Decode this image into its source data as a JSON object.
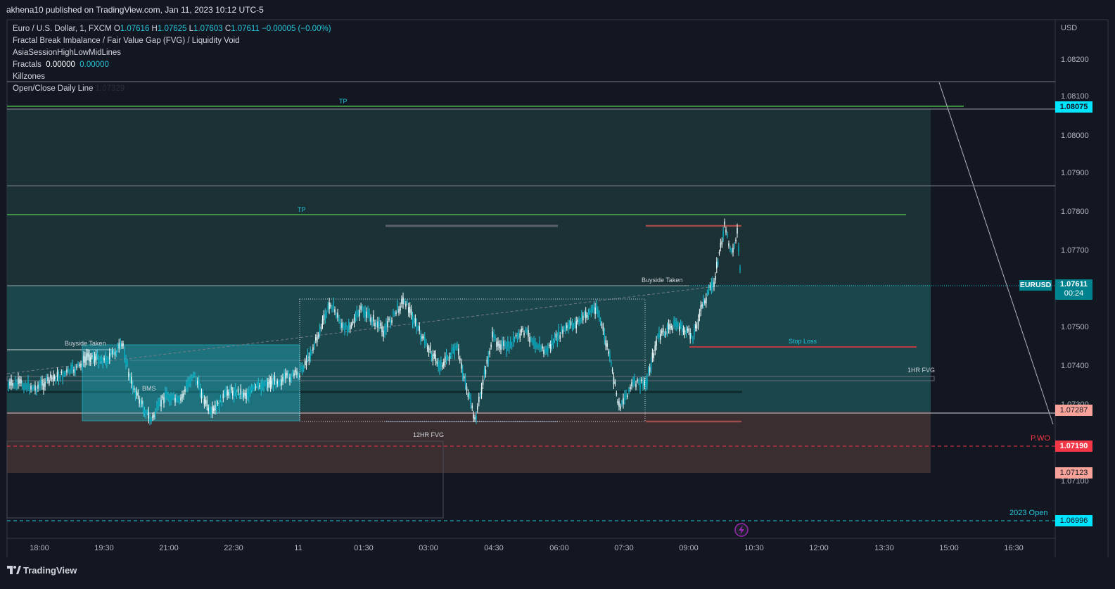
{
  "header": {
    "published": "akhena10 published on TradingView.com, Jan 11, 2023 10:12 UTC-5"
  },
  "legend": {
    "symbol_line": {
      "name": "Euro / U.S. Dollar, 1, FXCM",
      "o_label": "O",
      "o": "1.07616",
      "h_label": "H",
      "h": "1.07625",
      "l_label": "L",
      "l": "1.07603",
      "c_label": "C",
      "c": "1.07611",
      "change": "−0.00005 (−0.00%)"
    },
    "indicator_1": "Fractal Break Imbalance / Fair Value Gap (FVG) / Liquidity Void",
    "indicator_2": "AsiaSessionHighLowMidLines",
    "indicator_3": {
      "name": "Fractals",
      "v1": "0.00000",
      "v2": "0.00000"
    },
    "indicator_4": "Killzones",
    "indicator_5": {
      "name": "Open/Close Daily Line",
      "value": "1.07329"
    }
  },
  "price_axis": {
    "currency": "USD",
    "ticks": [
      "1.08200",
      "1.08100",
      "1.08000",
      "1.07900",
      "1.07800",
      "1.07700",
      "1.07500",
      "1.07400",
      "1.07300",
      "1.07100"
    ]
  },
  "price_tags": {
    "tp_high": "1.08075",
    "current_price": "1.07611",
    "countdown": "00:24",
    "symbol": "EURUSD",
    "level_1": "1.07287",
    "pwo": "1.07190",
    "level_2": "1.07123",
    "open_2023": "1.06996"
  },
  "time_axis": [
    "18:00",
    "19:30",
    "21:00",
    "22:30",
    "11",
    "01:30",
    "03:00",
    "04:30",
    "06:00",
    "07:30",
    "09:00",
    "10:30",
    "12:00",
    "13:30",
    "15:00",
    "16:30"
  ],
  "annotations": {
    "tp_top": "TP",
    "tp_mid": "TP",
    "buyside_left": "Buyside Taken",
    "buyside_right": "Buyside Taken",
    "bms": "BMS",
    "stop_loss": "Stop Loss",
    "fvg_1hr": "1HR FVG",
    "fvg_12hr": "12HR FVG",
    "pwo": "P.WO",
    "open_2023": "2023 Open"
  },
  "colors": {
    "background": "#131722",
    "teal": "#26c6da",
    "green_tp": "#4caf50",
    "red": "#f23645",
    "accent_label": "#00bcd4"
  },
  "footer": {
    "logo_text": "TradingView"
  }
}
